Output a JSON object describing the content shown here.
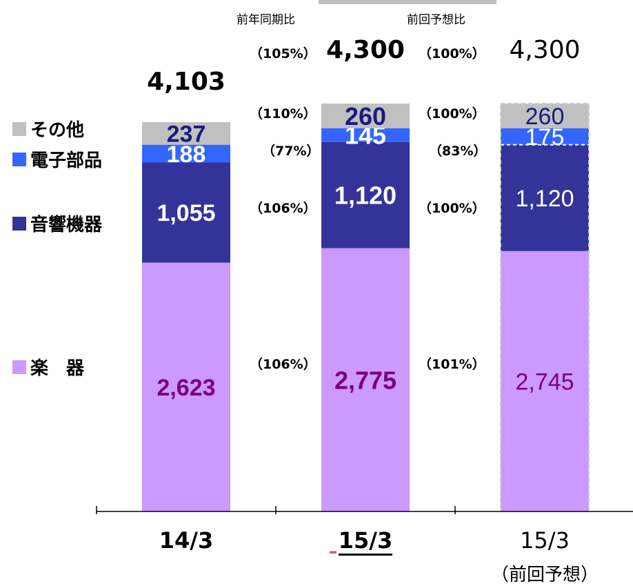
{
  "chart_data": {
    "type": "bar",
    "stacked": true,
    "categories": [
      "14/3",
      "15/3",
      "15/3"
    ],
    "category_subtitles": [
      "",
      "",
      "（前回予想）"
    ],
    "series": [
      {
        "name": "楽　器",
        "values": [
          2623,
          2775,
          2745
        ],
        "color": "#cc99ff",
        "label_color": "#7a007a"
      },
      {
        "name": "音響機器",
        "values": [
          1055,
          1120,
          1120
        ],
        "color": "#333399",
        "label_color": "#ffffff"
      },
      {
        "name": "電子部品",
        "values": [
          188,
          145,
          175
        ],
        "color": "#3366ff",
        "label_color": "#ffffff"
      },
      {
        "name": "その他",
        "values": [
          237,
          260,
          260
        ],
        "color": "#c0c0c0",
        "label_color": "#1a1a80"
      }
    ],
    "value_labels": [
      [
        "2,623",
        "1,055",
        "188",
        "237"
      ],
      [
        "2,775",
        "1,120",
        "145",
        "260"
      ],
      [
        "2,745",
        "1,120",
        "175",
        "260"
      ]
    ],
    "totals": [
      "4,103",
      "4,300",
      "4,300"
    ],
    "comparisons": [
      {
        "header": "前年同期比",
        "total": "（105%）",
        "values": [
          "（106%）",
          "（106%）",
          "（77%）",
          "（110%）"
        ]
      },
      {
        "header": "前回予想比",
        "total": "（100%）",
        "values": [
          "（101%）",
          "（100%）",
          "（83%）",
          "（100%）"
        ]
      }
    ],
    "highlighted_category_index": 1,
    "forecast_category_index": 2,
    "ylim": [
      0,
      4300
    ],
    "legend_position": "left",
    "grid": false
  }
}
